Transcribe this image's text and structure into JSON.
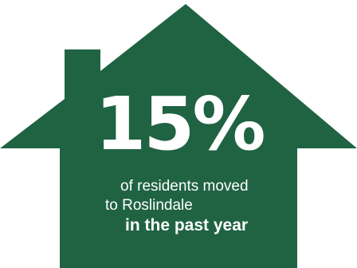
{
  "colors": {
    "house": "#1f6343",
    "text": "#ffffff",
    "background": "#ffffff"
  },
  "stat": {
    "value": "15%",
    "line_1": "of residents moved",
    "line_2": "to Roslindale",
    "line_3": "in the past year"
  }
}
